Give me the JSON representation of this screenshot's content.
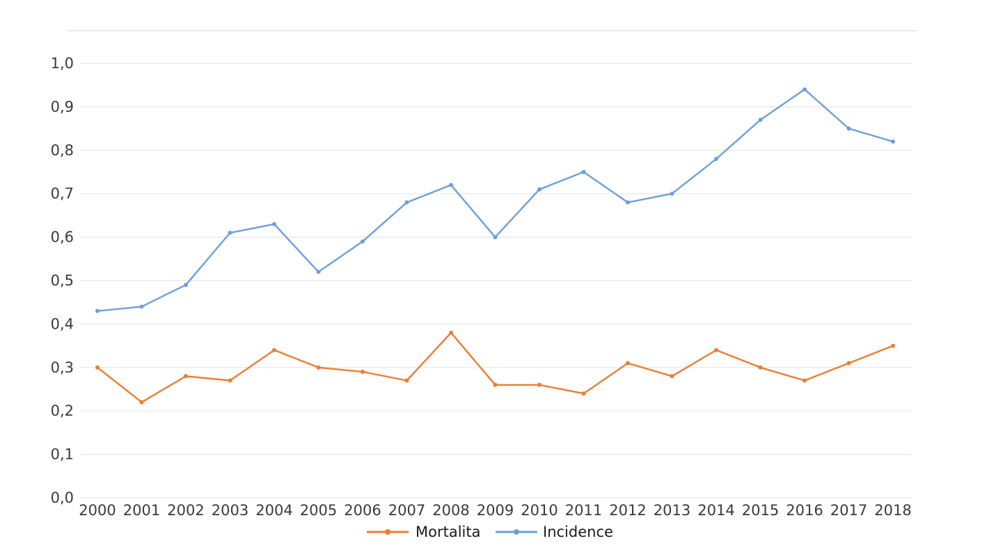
{
  "chart_data": {
    "type": "line",
    "x": [
      "2000",
      "2001",
      "2002",
      "2003",
      "2004",
      "2005",
      "2006",
      "2007",
      "2008",
      "2009",
      "2010",
      "2011",
      "2012",
      "2013",
      "2014",
      "2015",
      "2016",
      "2017",
      "2018"
    ],
    "series": [
      {
        "name": "Mortalita",
        "color": "#ed7d31",
        "values": [
          0.3,
          0.22,
          0.28,
          0.27,
          0.34,
          0.3,
          0.29,
          0.27,
          0.38,
          0.26,
          0.26,
          0.24,
          0.31,
          0.28,
          0.34,
          0.3,
          0.27,
          0.31,
          0.35
        ]
      },
      {
        "name": "Incidence",
        "color": "#6f9fd8",
        "values": [
          0.43,
          0.44,
          0.49,
          0.61,
          0.63,
          0.52,
          0.59,
          0.68,
          0.72,
          0.6,
          0.71,
          0.75,
          0.68,
          0.7,
          0.78,
          0.87,
          0.94,
          0.85,
          0.82
        ]
      }
    ],
    "ylim": [
      0,
      1.0
    ],
    "yticks": [
      "0,0",
      "0,1",
      "0,2",
      "0,3",
      "0,4",
      "0,5",
      "0,6",
      "0,7",
      "0,8",
      "0,9",
      "1,0"
    ],
    "grid": true,
    "legend_position": "bottom-center",
    "title": "",
    "xlabel": "",
    "ylabel": ""
  }
}
